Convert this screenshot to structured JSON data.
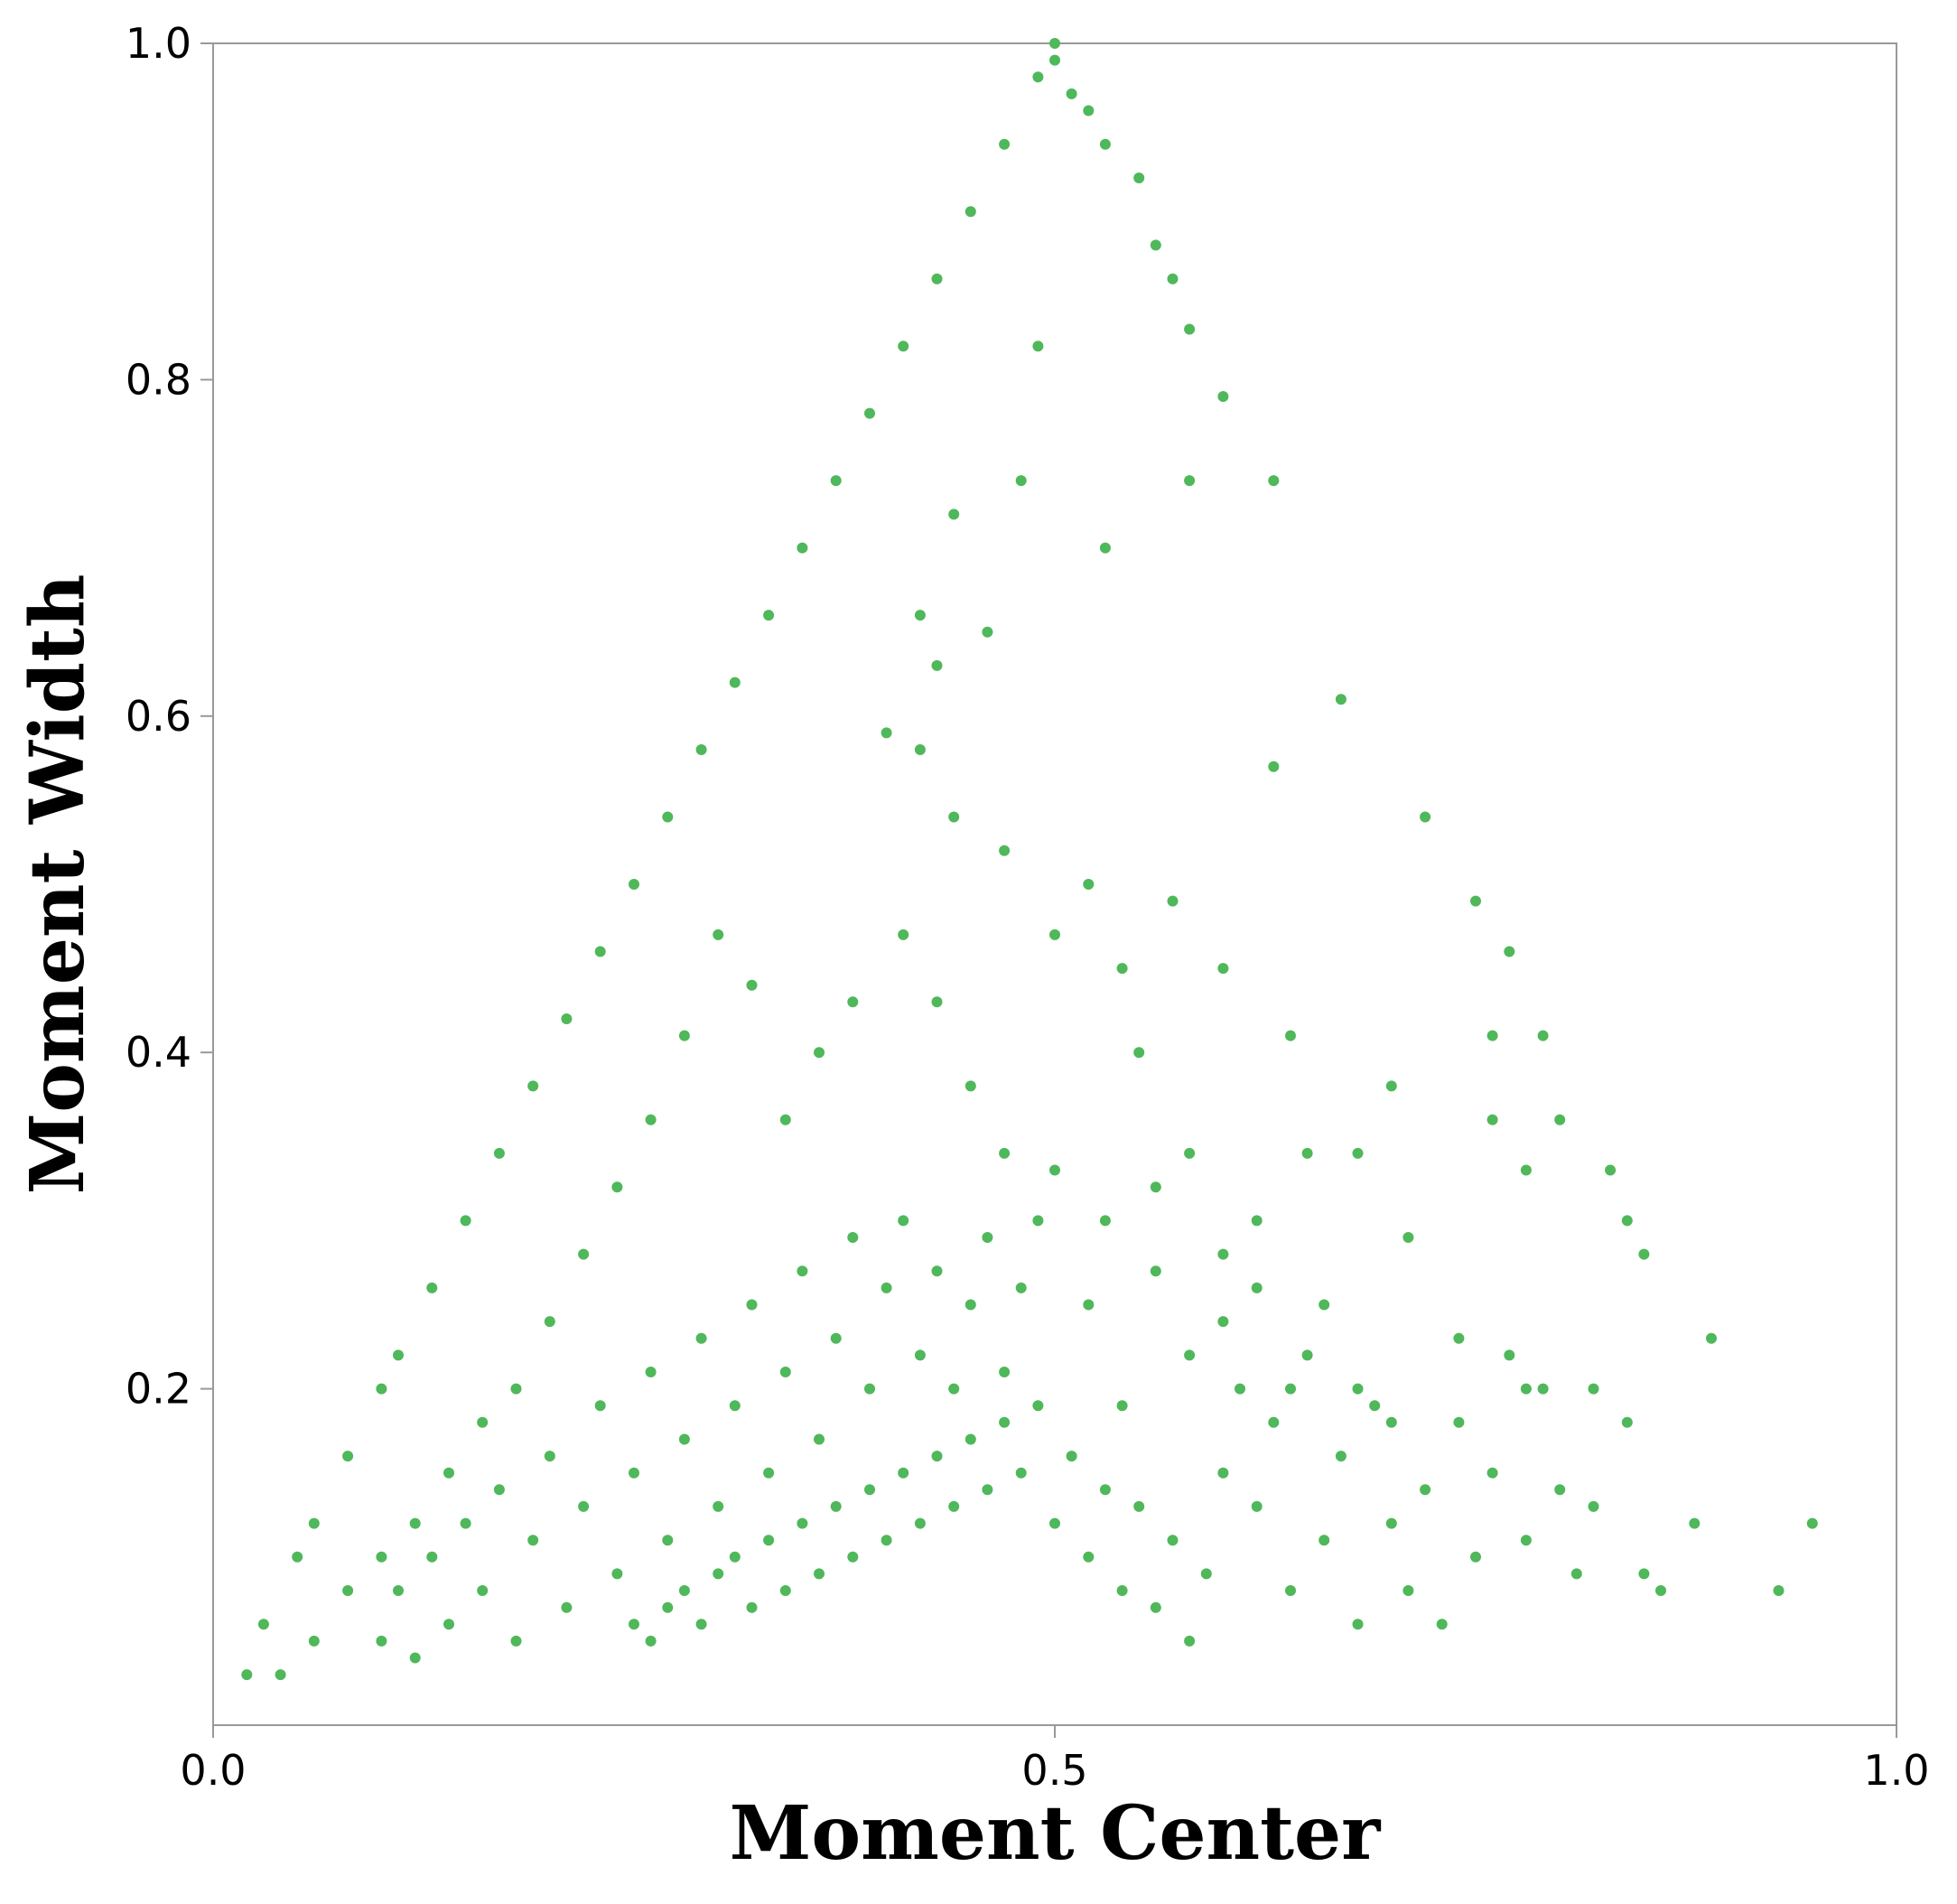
{
  "colors": {
    "point": "#4fb85a",
    "axis": "#999999",
    "text": "#000000"
  },
  "chart_data": {
    "type": "scatter",
    "title": "",
    "xlabel": "Moment Center",
    "ylabel": "Moment Width",
    "xlim": [
      0.0,
      1.0
    ],
    "ylim": [
      0.0,
      1.0
    ],
    "xticks": [
      "0.0",
      "0.5",
      "1.0"
    ],
    "yticks": [
      "0.2",
      "0.4",
      "0.6",
      "0.8",
      "1.0"
    ],
    "grid": false,
    "legend": "none",
    "series": [
      {
        "points": [
          [
            0.02,
            0.03
          ],
          [
            0.03,
            0.06
          ],
          [
            0.05,
            0.1
          ],
          [
            0.06,
            0.12
          ],
          [
            0.08,
            0.16
          ],
          [
            0.1,
            0.2
          ],
          [
            0.11,
            0.22
          ],
          [
            0.13,
            0.26
          ],
          [
            0.15,
            0.3
          ],
          [
            0.17,
            0.34
          ],
          [
            0.19,
            0.38
          ],
          [
            0.21,
            0.42
          ],
          [
            0.23,
            0.46
          ],
          [
            0.25,
            0.5
          ],
          [
            0.27,
            0.54
          ],
          [
            0.29,
            0.58
          ],
          [
            0.31,
            0.62
          ],
          [
            0.33,
            0.66
          ],
          [
            0.35,
            0.7
          ],
          [
            0.37,
            0.74
          ],
          [
            0.39,
            0.78
          ],
          [
            0.41,
            0.82
          ],
          [
            0.43,
            0.86
          ],
          [
            0.45,
            0.9
          ],
          [
            0.47,
            0.94
          ],
          [
            0.49,
            0.98
          ],
          [
            0.5,
            1.0
          ],
          [
            0.5,
            0.99
          ],
          [
            0.51,
            0.97
          ],
          [
            0.52,
            0.96
          ],
          [
            0.53,
            0.94
          ],
          [
            0.55,
            0.92
          ],
          [
            0.56,
            0.88
          ],
          [
            0.57,
            0.86
          ],
          [
            0.58,
            0.83
          ],
          [
            0.6,
            0.79
          ],
          [
            0.63,
            0.74
          ],
          [
            0.58,
            0.74
          ],
          [
            0.53,
            0.7
          ],
          [
            0.49,
            0.82
          ],
          [
            0.48,
            0.74
          ],
          [
            0.44,
            0.72
          ],
          [
            0.42,
            0.66
          ],
          [
            0.43,
            0.63
          ],
          [
            0.46,
            0.65
          ],
          [
            0.4,
            0.59
          ],
          [
            0.42,
            0.58
          ],
          [
            0.44,
            0.54
          ],
          [
            0.47,
            0.52
          ],
          [
            0.5,
            0.47
          ],
          [
            0.52,
            0.5
          ],
          [
            0.54,
            0.45
          ],
          [
            0.57,
            0.49
          ],
          [
            0.6,
            0.45
          ],
          [
            0.64,
            0.41
          ],
          [
            0.67,
            0.61
          ],
          [
            0.63,
            0.57
          ],
          [
            0.72,
            0.54
          ],
          [
            0.75,
            0.49
          ],
          [
            0.77,
            0.46
          ],
          [
            0.76,
            0.41
          ],
          [
            0.79,
            0.41
          ],
          [
            0.76,
            0.36
          ],
          [
            0.8,
            0.36
          ],
          [
            0.78,
            0.33
          ],
          [
            0.83,
            0.33
          ],
          [
            0.84,
            0.3
          ],
          [
            0.85,
            0.28
          ],
          [
            0.89,
            0.23
          ],
          [
            0.95,
            0.12
          ],
          [
            0.93,
            0.08
          ],
          [
            0.85,
            0.09
          ],
          [
            0.82,
            0.13
          ],
          [
            0.78,
            0.2
          ],
          [
            0.74,
            0.23
          ],
          [
            0.71,
            0.29
          ],
          [
            0.7,
            0.38
          ],
          [
            0.68,
            0.34
          ],
          [
            0.65,
            0.34
          ],
          [
            0.62,
            0.3
          ],
          [
            0.6,
            0.28
          ],
          [
            0.58,
            0.34
          ],
          [
            0.55,
            0.4
          ],
          [
            0.56,
            0.32
          ],
          [
            0.53,
            0.3
          ],
          [
            0.5,
            0.33
          ],
          [
            0.47,
            0.34
          ],
          [
            0.45,
            0.38
          ],
          [
            0.43,
            0.43
          ],
          [
            0.41,
            0.47
          ],
          [
            0.38,
            0.43
          ],
          [
            0.36,
            0.4
          ],
          [
            0.34,
            0.36
          ],
          [
            0.32,
            0.44
          ],
          [
            0.3,
            0.47
          ],
          [
            0.28,
            0.41
          ],
          [
            0.26,
            0.36
          ],
          [
            0.24,
            0.32
          ],
          [
            0.22,
            0.28
          ],
          [
            0.2,
            0.24
          ],
          [
            0.18,
            0.2
          ],
          [
            0.16,
            0.18
          ],
          [
            0.14,
            0.15
          ],
          [
            0.12,
            0.12
          ],
          [
            0.1,
            0.1
          ],
          [
            0.08,
            0.08
          ],
          [
            0.06,
            0.05
          ],
          [
            0.04,
            0.03
          ],
          [
            0.25,
            0.06
          ],
          [
            0.26,
            0.05
          ],
          [
            0.27,
            0.07
          ],
          [
            0.28,
            0.08
          ],
          [
            0.29,
            0.06
          ],
          [
            0.3,
            0.09
          ],
          [
            0.31,
            0.1
          ],
          [
            0.32,
            0.07
          ],
          [
            0.33,
            0.11
          ],
          [
            0.34,
            0.08
          ],
          [
            0.35,
            0.12
          ],
          [
            0.36,
            0.09
          ],
          [
            0.37,
            0.13
          ],
          [
            0.38,
            0.1
          ],
          [
            0.39,
            0.14
          ],
          [
            0.4,
            0.11
          ],
          [
            0.41,
            0.15
          ],
          [
            0.42,
            0.12
          ],
          [
            0.43,
            0.16
          ],
          [
            0.44,
            0.13
          ],
          [
            0.45,
            0.17
          ],
          [
            0.46,
            0.14
          ],
          [
            0.47,
            0.18
          ],
          [
            0.48,
            0.15
          ],
          [
            0.49,
            0.19
          ],
          [
            0.5,
            0.12
          ],
          [
            0.51,
            0.16
          ],
          [
            0.52,
            0.1
          ],
          [
            0.53,
            0.14
          ],
          [
            0.54,
            0.08
          ],
          [
            0.55,
            0.13
          ],
          [
            0.56,
            0.07
          ],
          [
            0.57,
            0.11
          ],
          [
            0.58,
            0.05
          ],
          [
            0.59,
            0.09
          ],
          [
            0.6,
            0.15
          ],
          [
            0.61,
            0.2
          ],
          [
            0.62,
            0.13
          ],
          [
            0.63,
            0.18
          ],
          [
            0.64,
            0.08
          ],
          [
            0.65,
            0.22
          ],
          [
            0.66,
            0.11
          ],
          [
            0.67,
            0.16
          ],
          [
            0.68,
            0.06
          ],
          [
            0.69,
            0.19
          ],
          [
            0.7,
            0.12
          ],
          [
            0.71,
            0.08
          ],
          [
            0.72,
            0.14
          ],
          [
            0.73,
            0.06
          ],
          [
            0.74,
            0.18
          ],
          [
            0.75,
            0.1
          ],
          [
            0.76,
            0.15
          ],
          [
            0.77,
            0.22
          ],
          [
            0.78,
            0.11
          ],
          [
            0.79,
            0.2
          ],
          [
            0.8,
            0.14
          ],
          [
            0.81,
            0.09
          ],
          [
            0.82,
            0.2
          ],
          [
            0.84,
            0.18
          ],
          [
            0.86,
            0.08
          ],
          [
            0.88,
            0.12
          ],
          [
            0.1,
            0.05
          ],
          [
            0.11,
            0.08
          ],
          [
            0.12,
            0.04
          ],
          [
            0.13,
            0.1
          ],
          [
            0.14,
            0.06
          ],
          [
            0.15,
            0.12
          ],
          [
            0.16,
            0.08
          ],
          [
            0.17,
            0.14
          ],
          [
            0.18,
            0.05
          ],
          [
            0.19,
            0.11
          ],
          [
            0.2,
            0.16
          ],
          [
            0.21,
            0.07
          ],
          [
            0.22,
            0.13
          ],
          [
            0.23,
            0.19
          ],
          [
            0.24,
            0.09
          ],
          [
            0.25,
            0.15
          ],
          [
            0.26,
            0.21
          ],
          [
            0.27,
            0.11
          ],
          [
            0.28,
            0.17
          ],
          [
            0.29,
            0.23
          ],
          [
            0.3,
            0.13
          ],
          [
            0.31,
            0.19
          ],
          [
            0.32,
            0.25
          ],
          [
            0.33,
            0.15
          ],
          [
            0.34,
            0.21
          ],
          [
            0.35,
            0.27
          ],
          [
            0.36,
            0.17
          ],
          [
            0.37,
            0.23
          ],
          [
            0.38,
            0.29
          ],
          [
            0.39,
            0.2
          ],
          [
            0.4,
            0.26
          ],
          [
            0.41,
            0.3
          ],
          [
            0.42,
            0.22
          ],
          [
            0.43,
            0.27
          ],
          [
            0.44,
            0.2
          ],
          [
            0.45,
            0.25
          ],
          [
            0.46,
            0.29
          ],
          [
            0.47,
            0.21
          ],
          [
            0.48,
            0.26
          ],
          [
            0.49,
            0.3
          ],
          [
            0.52,
            0.25
          ],
          [
            0.54,
            0.19
          ],
          [
            0.56,
            0.27
          ],
          [
            0.58,
            0.22
          ],
          [
            0.6,
            0.24
          ],
          [
            0.62,
            0.26
          ],
          [
            0.64,
            0.2
          ],
          [
            0.66,
            0.25
          ],
          [
            0.68,
            0.2
          ],
          [
            0.7,
            0.18
          ]
        ]
      }
    ]
  }
}
